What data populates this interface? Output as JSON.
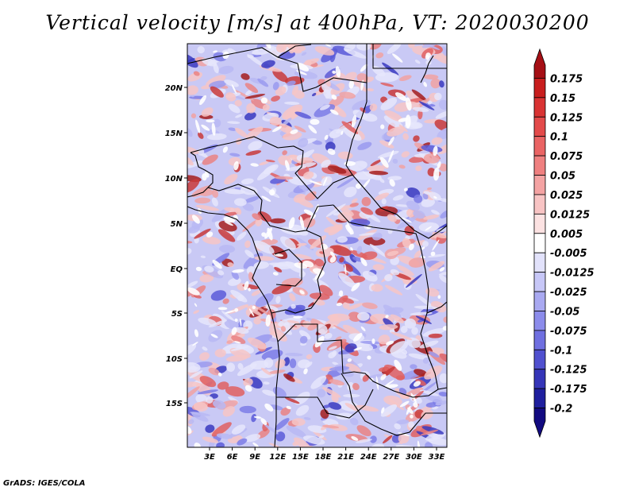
{
  "title": "Vertical velocity [m/s] at 400hPa, VT: 2020030200",
  "footer": "GrADS: IGES/COLA",
  "lat_labels": [
    "20N",
    "15N",
    "10N",
    "5N",
    "EQ",
    "5S",
    "10S",
    "15S"
  ],
  "lon_labels": [
    "3E",
    "6E",
    "9E",
    "12E",
    "15E",
    "18E",
    "21E",
    "24E",
    "27E",
    "30E",
    "33E"
  ],
  "colorbar": {
    "labels": [
      "0.175",
      "0.15",
      "0.125",
      "0.1",
      "0.075",
      "0.05",
      "0.025",
      "0.0125",
      "0.005",
      "-0.005",
      "-0.0125",
      "-0.025",
      "-0.05",
      "-0.075",
      "-0.1",
      "-0.125",
      "-0.175",
      "-0.2"
    ],
    "colors": [
      "#a50f15",
      "#c81e1e",
      "#d93333",
      "#e34a4a",
      "#ea6464",
      "#ef8080",
      "#f4a3a3",
      "#f8c4c4",
      "#fce2e2",
      "#ffffff",
      "#e2e2fb",
      "#c7c7f7",
      "#a9a9f1",
      "#8c8ceb",
      "#6f6fe0",
      "#5050cf",
      "#3535b8",
      "#1f1f9e",
      "#120a80"
    ]
  }
}
